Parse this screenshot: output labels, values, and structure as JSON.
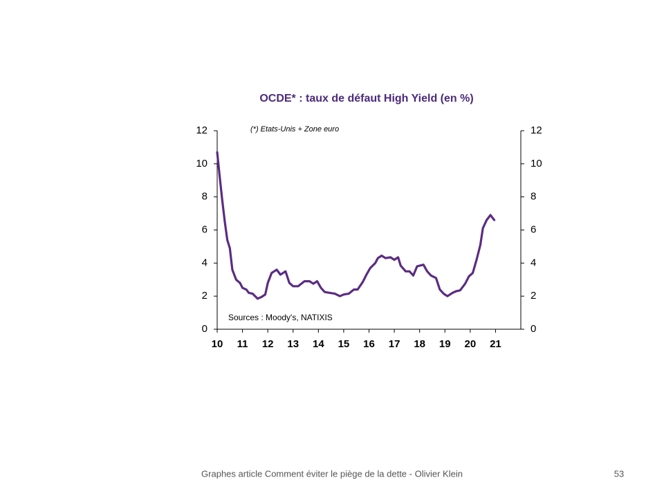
{
  "chart_data": {
    "type": "line",
    "title": "OCDE* : taux de défaut High Yield (en %)",
    "note": "(*) Etats-Unis + Zone euro",
    "source": "Sources : Moody's, NATIXIS",
    "xlim": [
      10,
      22
    ],
    "xticks": [
      10,
      11,
      12,
      13,
      14,
      15,
      16,
      17,
      18,
      19,
      20,
      21
    ],
    "ylim": [
      0,
      12
    ],
    "yticks": [
      0,
      2,
      4,
      6,
      8,
      10,
      12
    ],
    "y2lim": [
      0,
      12
    ],
    "y2ticks": [
      0,
      2,
      4,
      6,
      8,
      10,
      12
    ],
    "color": "#5b2c83",
    "x": [
      10.0,
      10.1,
      10.2,
      10.3,
      10.4,
      10.5,
      10.6,
      10.75,
      10.9,
      11.0,
      11.15,
      11.25,
      11.4,
      11.6,
      11.75,
      11.9,
      12.0,
      12.15,
      12.35,
      12.5,
      12.7,
      12.85,
      13.0,
      13.2,
      13.45,
      13.65,
      13.8,
      13.95,
      14.1,
      14.25,
      14.45,
      14.65,
      14.85,
      15.0,
      15.2,
      15.4,
      15.55,
      15.75,
      15.9,
      16.05,
      16.25,
      16.35,
      16.5,
      16.65,
      16.85,
      17.0,
      17.15,
      17.25,
      17.45,
      17.6,
      17.75,
      17.9,
      18.15,
      18.3,
      18.45,
      18.65,
      18.8,
      18.95,
      19.1,
      19.3,
      19.45,
      19.6,
      19.8,
      19.95,
      20.1,
      20.25,
      20.4,
      20.5,
      20.65,
      20.8,
      20.95
    ],
    "values": [
      10.7,
      9.2,
      7.8,
      6.5,
      5.4,
      4.9,
      3.6,
      3.0,
      2.8,
      2.5,
      2.4,
      2.2,
      2.15,
      1.85,
      1.95,
      2.1,
      2.8,
      3.4,
      3.6,
      3.3,
      3.5,
      2.8,
      2.6,
      2.6,
      2.9,
      2.9,
      2.75,
      2.9,
      2.5,
      2.25,
      2.2,
      2.15,
      2.0,
      2.1,
      2.15,
      2.4,
      2.4,
      2.85,
      3.3,
      3.7,
      4.0,
      4.3,
      4.45,
      4.3,
      4.35,
      4.2,
      4.35,
      3.85,
      3.5,
      3.5,
      3.25,
      3.8,
      3.9,
      3.5,
      3.25,
      3.1,
      2.4,
      2.15,
      2.0,
      2.2,
      2.3,
      2.35,
      2.75,
      3.2,
      3.4,
      4.2,
      5.1,
      6.1,
      6.6,
      6.9,
      6.6
    ]
  },
  "footer": {
    "text": "Graphes article Comment  éviter le piège de la dette - Olivier Klein",
    "page": "53"
  }
}
